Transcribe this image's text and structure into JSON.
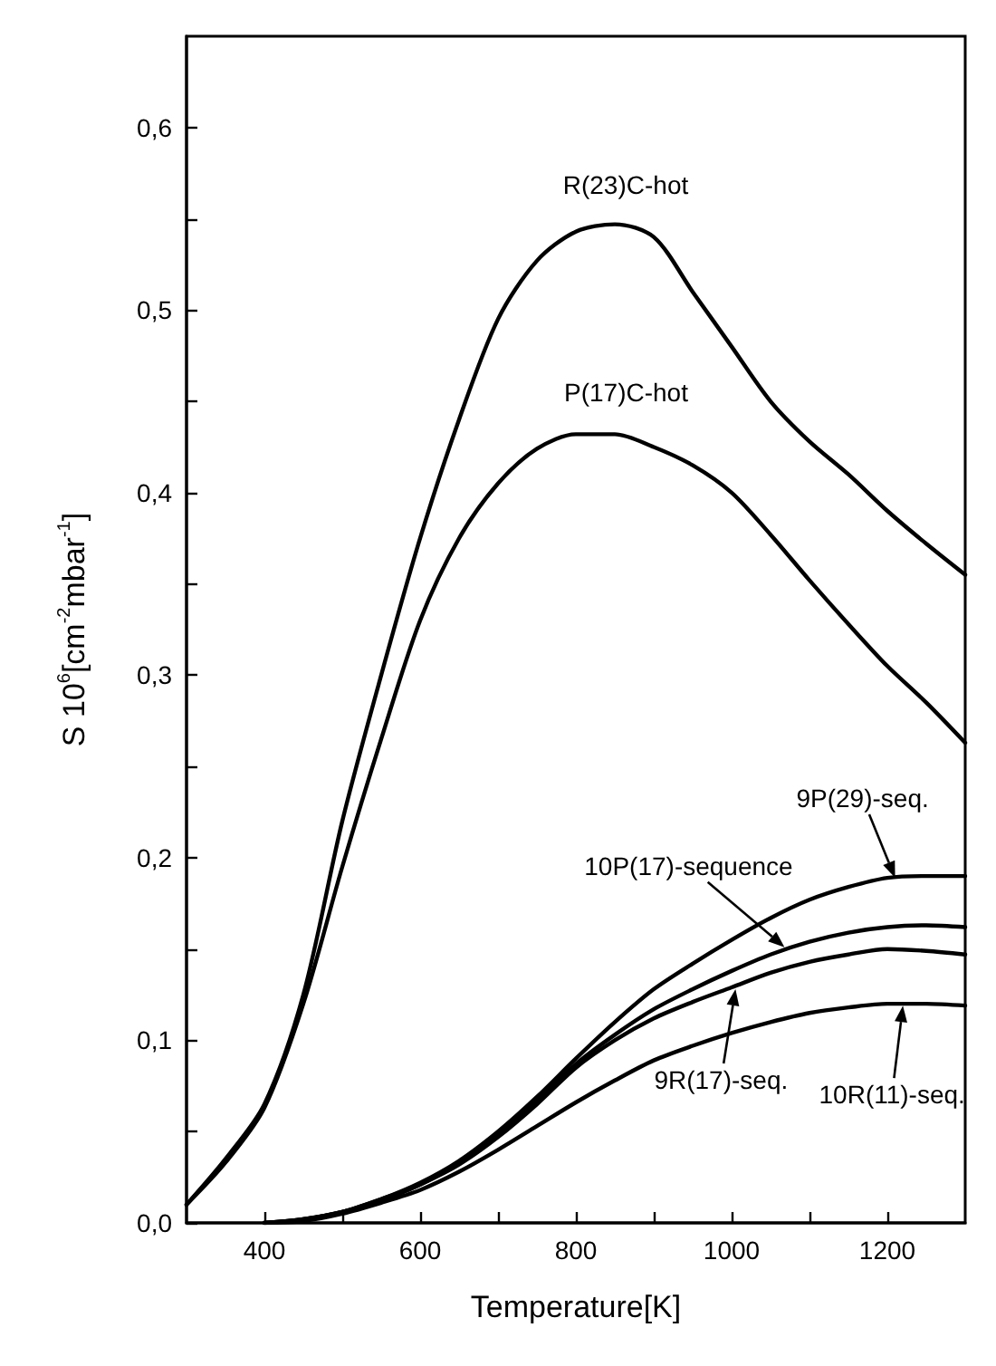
{
  "chart_data": {
    "type": "line",
    "xlabel": "Temperature[K]",
    "ylabel": "S 10$^{6}$[cm$^{-2}$mbar$^{-1}$]",
    "xlim": [
      300,
      1300
    ],
    "ylim": [
      0,
      0.65
    ],
    "xticks": [
      400,
      {
        "value": 500,
        "label": null
      },
      600,
      {
        "value": 700,
        "label": null
      },
      800,
      {
        "value": 900,
        "label": null
      },
      1000,
      {
        "value": 1100,
        "label": null
      },
      1200
    ],
    "yticks": [
      {
        "value": 0,
        "label": "0,0"
      },
      {
        "value": 0.05,
        "label": null
      },
      {
        "value": 0.1,
        "label": "0,1"
      },
      {
        "value": 0.15,
        "label": null
      },
      {
        "value": 0.2,
        "label": "0,2"
      },
      {
        "value": 0.25,
        "label": null
      },
      {
        "value": 0.3,
        "label": "0,3"
      },
      {
        "value": 0.35,
        "label": null
      },
      {
        "value": 0.4,
        "label": "0,4"
      },
      {
        "value": 0.45,
        "label": null
      },
      {
        "value": 0.5,
        "label": "0,5"
      },
      {
        "value": 0.55,
        "label": null
      },
      {
        "value": 0.6,
        "label": "0,6"
      }
    ],
    "x": [
      300,
      350,
      400,
      450,
      500,
      550,
      600,
      650,
      700,
      750,
      800,
      850,
      900,
      950,
      1000,
      1050,
      1100,
      1150,
      1200,
      1250,
      1300
    ],
    "series": [
      {
        "color": "#000000",
        "values": [
          0.01,
          0.035,
          0.065,
          0.125,
          0.22,
          0.3,
          0.375,
          0.44,
          0.495,
          0.527,
          0.543,
          0.547,
          0.54,
          0.51,
          0.48,
          0.45,
          0.428,
          0.41,
          0.39,
          0.372,
          0.355
        ]
      },
      {
        "color": "#000000",
        "values": [
          0.01,
          0.033,
          0.063,
          0.12,
          0.195,
          0.265,
          0.33,
          0.375,
          0.405,
          0.424,
          0.432,
          0.432,
          0.425,
          0.415,
          0.4,
          0.377,
          0.352,
          0.328,
          0.305,
          0.285,
          0.263
        ]
      },
      {
        "color": "#000000",
        "values": [
          null,
          null,
          0,
          0.002,
          0.006,
          0.013,
          0.022,
          0.034,
          0.05,
          0.069,
          0.09,
          0.11,
          0.128,
          0.142,
          0.155,
          0.167,
          0.177,
          0.184,
          0.189,
          0.19,
          0.19
        ]
      },
      {
        "color": "#000000",
        "values": [
          null,
          null,
          0,
          0.002,
          0.006,
          0.013,
          0.021,
          0.033,
          0.048,
          0.067,
          0.087,
          0.103,
          0.117,
          0.128,
          0.138,
          0.147,
          0.154,
          0.159,
          0.162,
          0.163,
          0.162
        ]
      },
      {
        "color": "#000000",
        "values": [
          null,
          null,
          0,
          0.002,
          0.006,
          0.012,
          0.021,
          0.032,
          0.047,
          0.065,
          0.085,
          0.1,
          0.112,
          0.121,
          0.129,
          0.137,
          0.143,
          0.147,
          0.15,
          0.149,
          0.147
        ]
      },
      {
        "color": "#000000",
        "values": [
          null,
          null,
          0,
          0.001,
          0.005,
          0.011,
          0.018,
          0.028,
          0.04,
          0.053,
          0.066,
          0.078,
          0.089,
          0.097,
          0.104,
          0.11,
          0.115,
          0.118,
          0.12,
          0.12,
          0.119
        ]
      }
    ],
    "annotations": [
      {
        "text": "R(23)C-hot",
        "x": 850,
        "y": 0.547
      },
      {
        "text": "P(17)C-hot",
        "x": 825,
        "y": 0.433
      },
      {
        "text": "9P(29)-seq.",
        "x": 1210,
        "y": 0.189
      },
      {
        "text": "10P(17)-sequence",
        "x": 1068,
        "y": 0.151
      },
      {
        "text": "9R(17)-seq.",
        "x": 1005,
        "y": 0.128
      },
      {
        "text": "10R(11)-seq.",
        "x": 1220,
        "y": 0.119
      }
    ],
    "grid": false,
    "marker": "none",
    "line_style": "solid"
  }
}
